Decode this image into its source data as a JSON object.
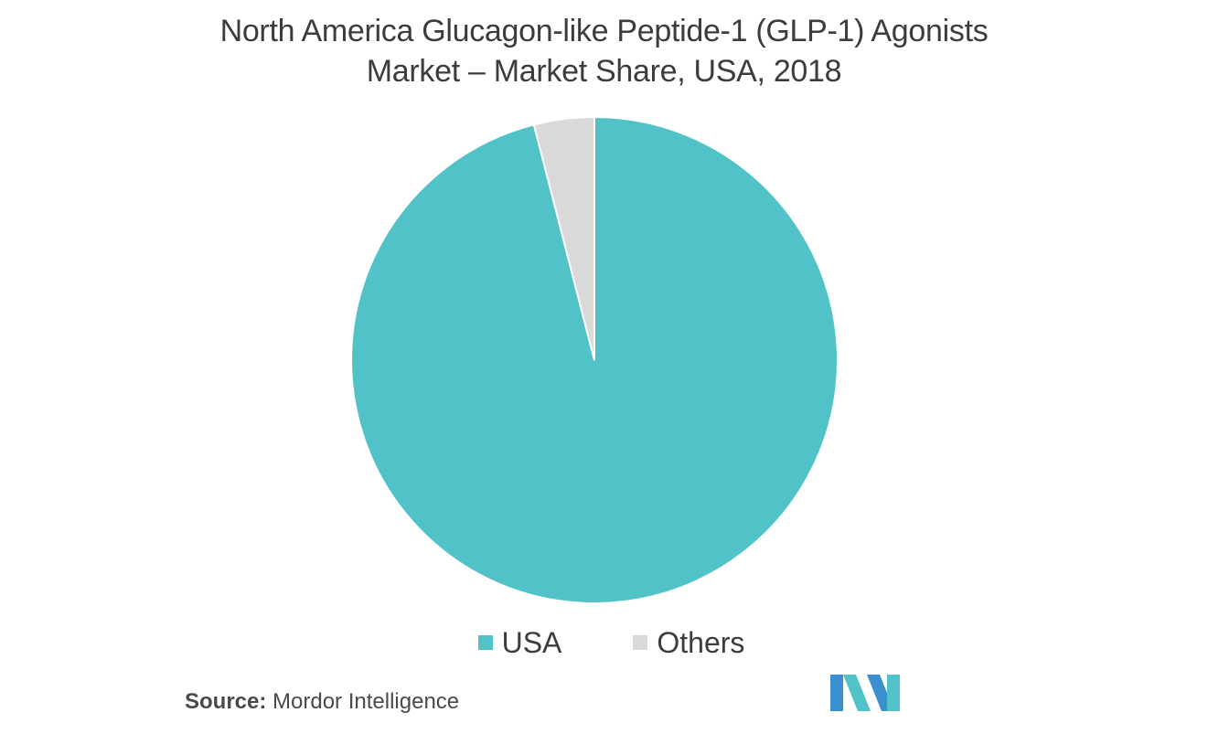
{
  "chart_data": {
    "type": "pie",
    "title": "North America Glucagon-like Peptide-1 (GLP-1) Agonists Market – Market Share, USA, 2018",
    "title_lines": [
      "North America Glucagon-like Peptide-1 (GLP-1) Agonists",
      "Market – Market Share, USA, 2018"
    ],
    "categories": [
      "USA",
      "Others"
    ],
    "values": [
      96,
      4
    ],
    "colors": [
      "#51c3c8",
      "#d9d9d9"
    ],
    "start_angle": "12 o'clock",
    "direction": "clockwise",
    "legend_position": "bottom"
  },
  "legend": {
    "items": [
      {
        "label": "USA",
        "color": "#51c3c8"
      },
      {
        "label": "Others",
        "color": "#d9d9d9"
      }
    ]
  },
  "source": {
    "label": "Source:",
    "text": "Mordor Intelligence"
  },
  "logo": {
    "icon": "mordor-intelligence-logo-icon",
    "colors": [
      "#3a8fd0",
      "#51c3c8"
    ]
  }
}
